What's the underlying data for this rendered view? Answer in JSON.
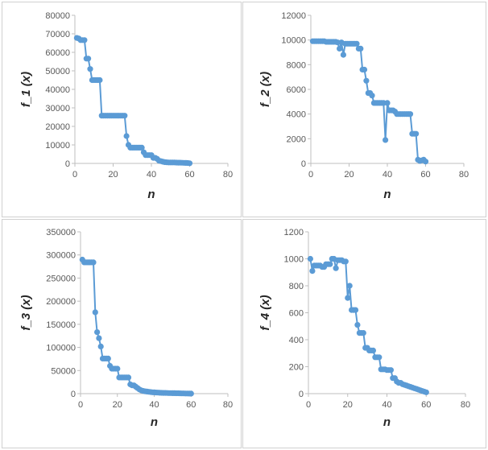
{
  "chart_data": [
    {
      "type": "scatter",
      "ylabel": "f_1 (x)",
      "xlabel": "n",
      "xlim": [
        0,
        80
      ],
      "ylim": [
        0,
        80000
      ],
      "xticks": [
        "0",
        "20",
        "40",
        "60",
        "80"
      ],
      "yticks": [
        "0",
        "10000",
        "20000",
        "30000",
        "40000",
        "50000",
        "60000",
        "70000",
        "80000"
      ],
      "grid": false,
      "color": "#5b9bd5",
      "series": [
        {
          "x": [
            1,
            2,
            3,
            4,
            5,
            6,
            7,
            8,
            9,
            10,
            11,
            12,
            13,
            14,
            15,
            16,
            17,
            18,
            19,
            20,
            21,
            22,
            23,
            24,
            25,
            26,
            27,
            28,
            29,
            30,
            31,
            32,
            33,
            34,
            35,
            36,
            37,
            38,
            39,
            40,
            41,
            42,
            43,
            44,
            45,
            46,
            47,
            48,
            49,
            50,
            51,
            52,
            53,
            54,
            55,
            56,
            57,
            58,
            59,
            60
          ],
          "y": [
            67800,
            67500,
            66600,
            66600,
            66600,
            56600,
            56600,
            51000,
            45000,
            45000,
            45000,
            45000,
            45000,
            25800,
            25800,
            25800,
            25800,
            25800,
            25800,
            25800,
            25800,
            25800,
            25800,
            25800,
            25800,
            25800,
            14800,
            10000,
            8500,
            8500,
            8500,
            8500,
            8500,
            8500,
            8500,
            6000,
            4500,
            4500,
            4500,
            4500,
            3000,
            3000,
            2500,
            1500,
            1200,
            900,
            700,
            600,
            500,
            500,
            500,
            500,
            450,
            400,
            400,
            350,
            300,
            250,
            200,
            100
          ]
        }
      ]
    },
    {
      "type": "scatter",
      "ylabel": "f_2 (x)",
      "xlabel": "n",
      "xlim": [
        0,
        80
      ],
      "ylim": [
        0,
        12000
      ],
      "xticks": [
        "0",
        "20",
        "40",
        "60",
        "80"
      ],
      "yticks": [
        "0",
        "2000",
        "4000",
        "6000",
        "8000",
        "10000",
        "12000"
      ],
      "grid": false,
      "color": "#5b9bd5",
      "series": [
        {
          "x": [
            1,
            2,
            3,
            4,
            5,
            6,
            7,
            8,
            9,
            10,
            11,
            12,
            13,
            14,
            15,
            16,
            17,
            18,
            19,
            20,
            21,
            22,
            23,
            24,
            25,
            26,
            27,
            28,
            29,
            30,
            31,
            32,
            33,
            34,
            35,
            36,
            37,
            38,
            39,
            40,
            41,
            42,
            43,
            44,
            45,
            46,
            47,
            48,
            49,
            50,
            51,
            52,
            53,
            54,
            55,
            56,
            57,
            58,
            59,
            60
          ],
          "y": [
            9900,
            9900,
            9900,
            9900,
            9900,
            9900,
            9900,
            9850,
            9850,
            9850,
            9850,
            9850,
            9850,
            9800,
            9300,
            9800,
            8800,
            9700,
            9700,
            9700,
            9700,
            9700,
            9700,
            9700,
            9300,
            9300,
            7600,
            7600,
            6700,
            5700,
            5700,
            5500,
            4900,
            4900,
            4900,
            4900,
            4900,
            4900,
            1900,
            4900,
            4300,
            4300,
            4300,
            4200,
            4000,
            4000,
            4000,
            4000,
            4000,
            4000,
            4000,
            4000,
            2400,
            2400,
            2400,
            300,
            200,
            250,
            300,
            150
          ]
        }
      ]
    },
    {
      "type": "scatter",
      "ylabel": "f_3 (x)",
      "xlabel": "n",
      "xlim": [
        0,
        80
      ],
      "ylim": [
        0,
        350000
      ],
      "xticks": [
        "0",
        "20",
        "40",
        "60",
        "80"
      ],
      "yticks": [
        "0",
        "50000",
        "100000",
        "150000",
        "200000",
        "250000",
        "300000",
        "350000"
      ],
      "grid": false,
      "color": "#5b9bd5",
      "series": [
        {
          "x": [
            1,
            2,
            3,
            4,
            5,
            6,
            7,
            8,
            9,
            10,
            11,
            12,
            13,
            14,
            15,
            16,
            17,
            18,
            19,
            20,
            21,
            22,
            23,
            24,
            25,
            26,
            27,
            28,
            29,
            30,
            31,
            32,
            33,
            34,
            35,
            36,
            37,
            38,
            39,
            40,
            41,
            42,
            43,
            44,
            45,
            46,
            47,
            48,
            49,
            50,
            51,
            52,
            53,
            54,
            55,
            56,
            57,
            58,
            59,
            60
          ],
          "y": [
            290000,
            284000,
            284000,
            284000,
            284000,
            284000,
            284000,
            176000,
            133000,
            120000,
            102000,
            76000,
            76000,
            76000,
            76000,
            60000,
            54000,
            54000,
            54000,
            54000,
            35000,
            35000,
            35000,
            35000,
            35000,
            35000,
            20000,
            18000,
            18000,
            15000,
            12000,
            9000,
            7000,
            6000,
            5000,
            4500,
            4000,
            3500,
            3000,
            2800,
            2500,
            2200,
            2000,
            1800,
            1600,
            1500,
            1400,
            1300,
            1200,
            1100,
            1000,
            900,
            800,
            700,
            600,
            500,
            400,
            300,
            200,
            100
          ]
        }
      ]
    },
    {
      "type": "scatter",
      "ylabel": "f_4 (x)",
      "xlabel": "n",
      "xlim": [
        0,
        80
      ],
      "ylim": [
        0,
        1200
      ],
      "xticks": [
        "0",
        "20",
        "40",
        "60",
        "80"
      ],
      "yticks": [
        "0",
        "200",
        "400",
        "600",
        "800",
        "1000",
        "1200"
      ],
      "grid": false,
      "color": "#5b9bd5",
      "series": [
        {
          "x": [
            1,
            2,
            3,
            4,
            5,
            6,
            7,
            8,
            9,
            10,
            11,
            12,
            13,
            14,
            15,
            16,
            17,
            18,
            19,
            20,
            21,
            22,
            23,
            24,
            25,
            26,
            27,
            28,
            29,
            30,
            31,
            32,
            33,
            34,
            35,
            36,
            37,
            38,
            39,
            40,
            41,
            42,
            43,
            44,
            45,
            46,
            47,
            48,
            49,
            50,
            51,
            52,
            53,
            54,
            55,
            56,
            57,
            58,
            59,
            60
          ],
          "y": [
            1000,
            910,
            950,
            950,
            950,
            950,
            940,
            940,
            960,
            960,
            960,
            1000,
            1000,
            930,
            990,
            990,
            990,
            980,
            980,
            710,
            800,
            620,
            620,
            620,
            510,
            450,
            450,
            450,
            340,
            340,
            320,
            320,
            320,
            270,
            270,
            270,
            180,
            180,
            180,
            175,
            175,
            175,
            115,
            115,
            90,
            80,
            80,
            70,
            65,
            60,
            55,
            50,
            45,
            40,
            35,
            30,
            25,
            20,
            15,
            10
          ]
        }
      ]
    }
  ]
}
